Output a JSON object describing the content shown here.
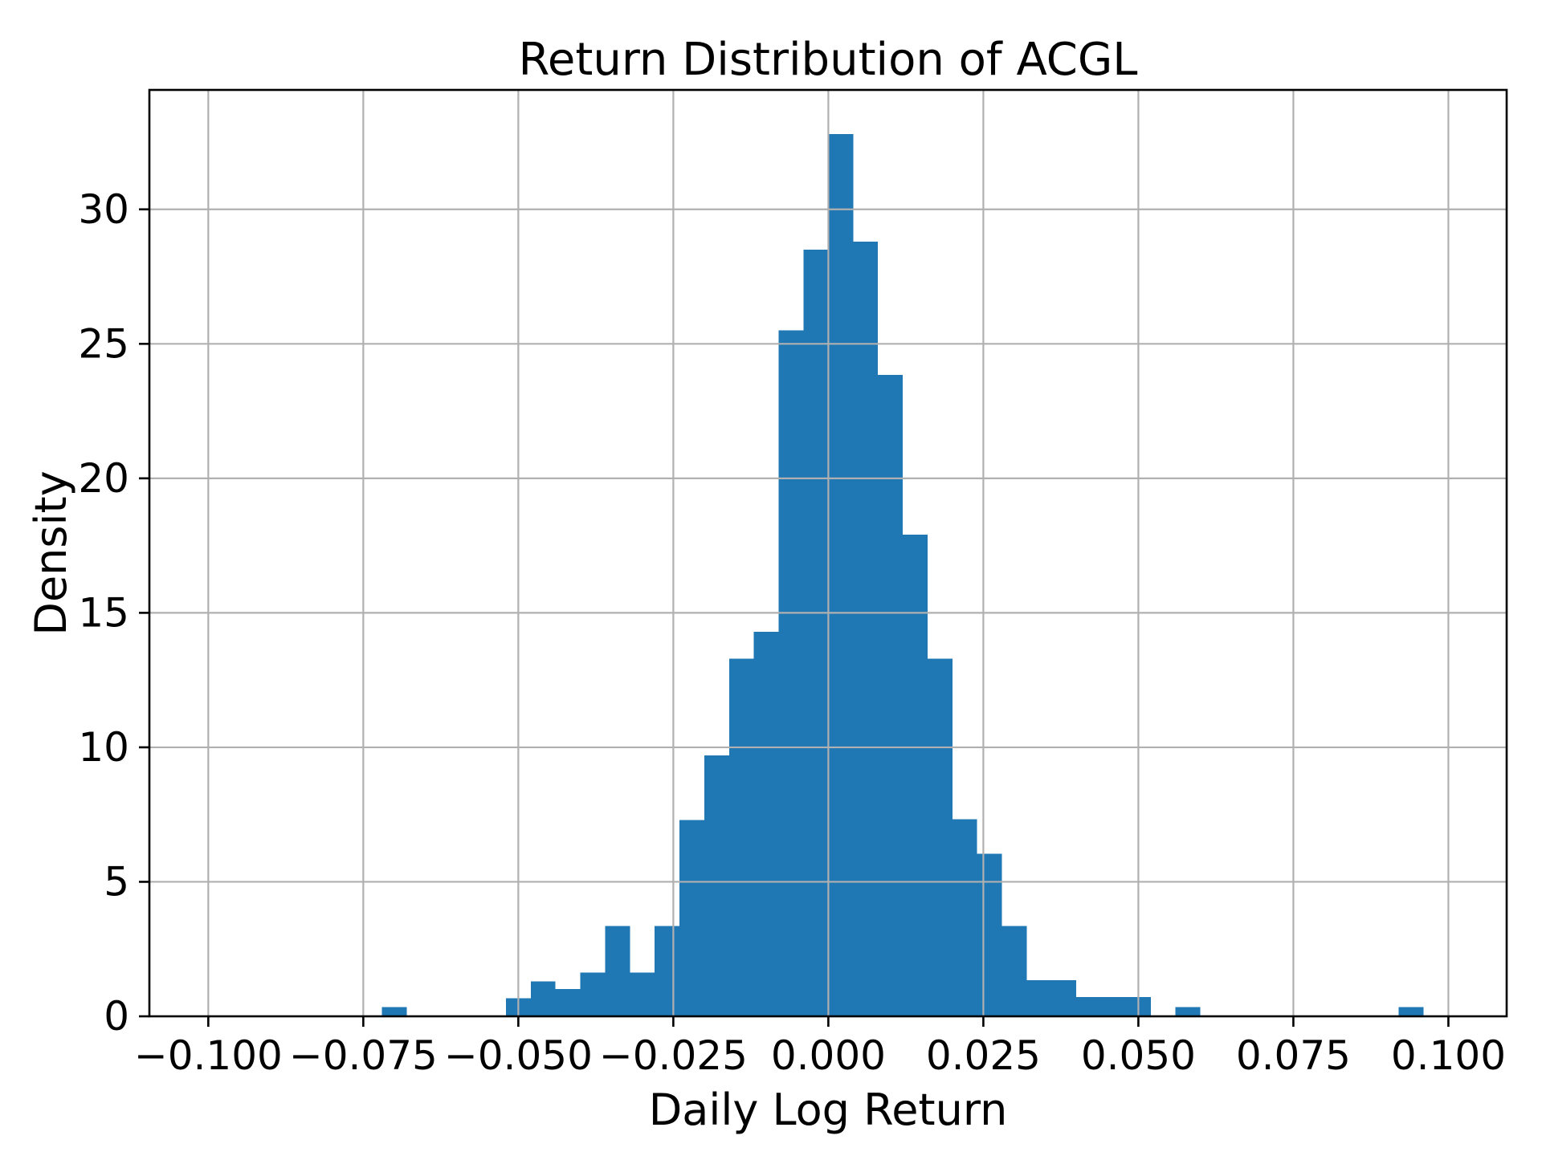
{
  "page": {
    "background": "#ffffff"
  },
  "chart_data": {
    "type": "bar",
    "subtype": "histogram",
    "title": "Return Distribution of ACGL",
    "xlabel": "Daily Log Return",
    "ylabel": "Density",
    "legend": "none",
    "grid": "on",
    "bar_color": "#1f77b4",
    "grid_color": "#b0b0b0",
    "spine_color": "#000000",
    "background_color": "#ffffff",
    "bins": {
      "start": -0.072,
      "width": 0.004,
      "count": 42
    },
    "densities": [
      0.35,
      0,
      0,
      0,
      0,
      0.67,
      1.3,
      1.01,
      1.63,
      3.36,
      1.63,
      3.36,
      7.3,
      9.7,
      13.3,
      14.3,
      25.5,
      28.5,
      32.8,
      28.8,
      23.85,
      17.9,
      13.3,
      7.33,
      6.04,
      3.36,
      1.34,
      1.34,
      0.72,
      0.72,
      0.72,
      0,
      0.35,
      0,
      0,
      0,
      0,
      0,
      0,
      0,
      0,
      0.35
    ],
    "xlim": [
      -0.1095,
      0.1094
    ],
    "ylim": [
      0,
      34.44
    ],
    "xticks": [
      {
        "value": -0.1,
        "label": "−0.100"
      },
      {
        "value": -0.075,
        "label": "−0.075"
      },
      {
        "value": -0.05,
        "label": "−0.050"
      },
      {
        "value": -0.025,
        "label": "−0.025"
      },
      {
        "value": 0.0,
        "label": "0.000"
      },
      {
        "value": 0.025,
        "label": "0.025"
      },
      {
        "value": 0.05,
        "label": "0.050"
      },
      {
        "value": 0.075,
        "label": "0.075"
      },
      {
        "value": 0.1,
        "label": "0.100"
      }
    ],
    "yticks": [
      {
        "value": 0,
        "label": "0"
      },
      {
        "value": 5,
        "label": "5"
      },
      {
        "value": 10,
        "label": "10"
      },
      {
        "value": 15,
        "label": "15"
      },
      {
        "value": 20,
        "label": "20"
      },
      {
        "value": 25,
        "label": "25"
      },
      {
        "value": 30,
        "label": "30"
      }
    ]
  }
}
